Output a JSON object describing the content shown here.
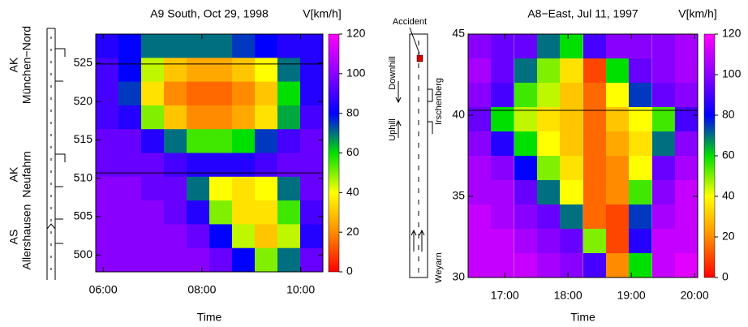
{
  "chart_data": [
    {
      "type": "heatmap",
      "title": "A9 South, Oct 29, 1998",
      "colorbar_label": "V[km/h]",
      "xlabel": "Time",
      "road_labels": [
        "AK",
        "München−Nord",
        "AK",
        "Neufahrn",
        "AS",
        "Allershausen"
      ],
      "x": [
        6.08,
        6.54,
        7.0,
        7.46,
        7.92,
        8.38,
        8.84,
        9.3,
        9.76,
        10.22
      ],
      "y": [
        527.25,
        524.15,
        521.05,
        517.95,
        514.85,
        511.75,
        508.65,
        505.55,
        502.45,
        499.35
      ],
      "z": [
        [
          85,
          80,
          70,
          70,
          70,
          70,
          75,
          80,
          85,
          85
        ],
        [
          90,
          80,
          45,
          30,
          25,
          25,
          30,
          40,
          70,
          85
        ],
        [
          90,
          75,
          35,
          20,
          15,
          15,
          20,
          30,
          60,
          85
        ],
        [
          90,
          85,
          50,
          30,
          20,
          20,
          25,
          35,
          65,
          90
        ],
        [
          95,
          95,
          85,
          70,
          55,
          55,
          60,
          75,
          90,
          95
        ],
        [
          95,
          95,
          95,
          90,
          85,
          85,
          85,
          90,
          95,
          95
        ],
        [
          100,
          100,
          95,
          95,
          70,
          40,
          35,
          40,
          70,
          95
        ],
        [
          100,
          100,
          100,
          95,
          85,
          50,
          35,
          35,
          55,
          90
        ],
        [
          100,
          100,
          100,
          100,
          95,
          80,
          45,
          30,
          45,
          85
        ],
        [
          100,
          100,
          100,
          100,
          100,
          95,
          80,
          50,
          70,
          95
        ]
      ],
      "xlim": [
        5.85,
        10.45
      ],
      "ylim": [
        497.8,
        528.8
      ],
      "xticks": [
        {
          "value": 6,
          "label": "06:00"
        },
        {
          "value": 8,
          "label": "08:00"
        },
        {
          "value": 10,
          "label": "10:00"
        }
      ],
      "yticks": [
        500,
        505,
        510,
        515,
        520,
        525
      ],
      "clim": [
        0,
        120
      ],
      "cticks": [
        0,
        20,
        40,
        60,
        80,
        100,
        120
      ],
      "colors": [
        "#ff0000",
        "#ff8c00",
        "#ffff00",
        "#00e000",
        "#0000ff",
        "#8a00ff",
        "#ff00ff"
      ]
    },
    {
      "type": "heatmap",
      "title": "A8−East, Jul 11, 1997",
      "colorbar_label": "V[km/h]",
      "xlabel": "Time",
      "road_labels": [
        "Accident",
        "Downhill",
        "Uphill",
        "Irschenberg",
        "Weyarn"
      ],
      "x": [
        16.6,
        16.96,
        17.33,
        17.69,
        18.05,
        18.42,
        18.78,
        19.14,
        19.51,
        19.87
      ],
      "y": [
        44.25,
        42.75,
        41.25,
        39.75,
        38.25,
        36.75,
        35.25,
        33.75,
        32.25,
        30.75
      ],
      "z": [
        [
          100,
          95,
          95,
          70,
          60,
          90,
          100,
          100,
          100,
          105
        ],
        [
          105,
          95,
          70,
          50,
          35,
          10,
          60,
          95,
          100,
          105
        ],
        [
          100,
          90,
          55,
          45,
          30,
          15,
          40,
          75,
          95,
          100
        ],
        [
          95,
          60,
          45,
          35,
          30,
          15,
          30,
          40,
          55,
          90
        ],
        [
          100,
          85,
          60,
          40,
          30,
          15,
          25,
          35,
          70,
          100
        ],
        [
          105,
          100,
          80,
          50,
          35,
          15,
          20,
          40,
          95,
          105
        ],
        [
          105,
          105,
          95,
          70,
          40,
          15,
          20,
          55,
          100,
          110
        ],
        [
          110,
          105,
          100,
          95,
          70,
          15,
          10,
          75,
          105,
          110
        ],
        [
          110,
          110,
          105,
          100,
          95,
          50,
          10,
          85,
          110,
          110
        ],
        [
          110,
          110,
          110,
          105,
          100,
          90,
          20,
          60,
          110,
          115
        ]
      ],
      "xlim": [
        16.42,
        20.05
      ],
      "ylim": [
        30,
        45
      ],
      "xticks": [
        {
          "value": 17,
          "label": "17:00"
        },
        {
          "value": 18,
          "label": "18:00"
        },
        {
          "value": 19,
          "label": "19:00"
        },
        {
          "value": 20,
          "label": "20:00"
        }
      ],
      "yticks": [
        30,
        35,
        40,
        45
      ],
      "clim": [
        0,
        120
      ],
      "cticks": [
        0,
        20,
        40,
        60,
        80,
        100,
        120
      ],
      "colors": [
        "#ff0000",
        "#ff8c00",
        "#ffff00",
        "#00e000",
        "#0000ff",
        "#8a00ff",
        "#ff00ff"
      ]
    }
  ]
}
